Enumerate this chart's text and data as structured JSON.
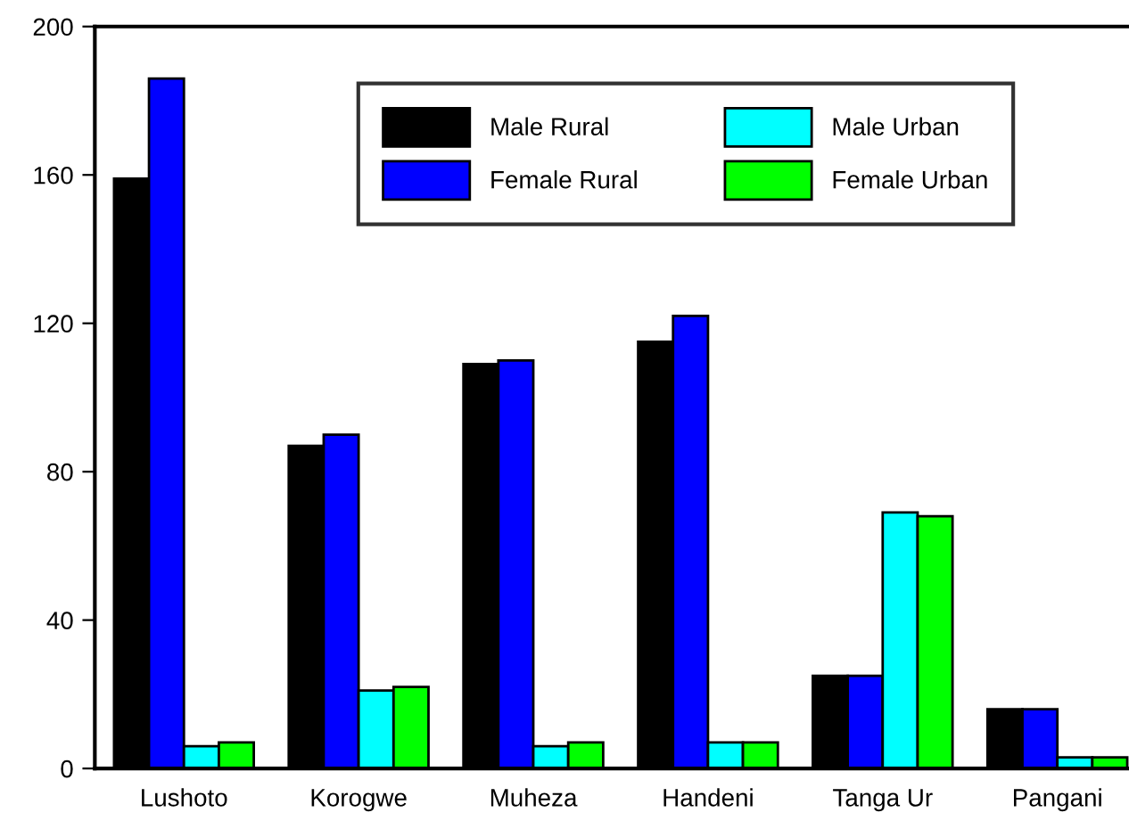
{
  "chart_data": {
    "type": "bar",
    "categories": [
      "Lushoto",
      "Korogwe",
      "Muheza",
      "Handeni",
      "Tanga Ur",
      "Pangani"
    ],
    "series": [
      {
        "name": "Male Rural",
        "color": "#000000",
        "values": [
          159,
          87,
          109,
          115,
          25,
          16
        ]
      },
      {
        "name": "Female Rural",
        "color": "#0000ff",
        "values": [
          186,
          90,
          110,
          122,
          25,
          16
        ]
      },
      {
        "name": "Male Urban",
        "color": "#00ffff",
        "values": [
          6,
          21,
          6,
          7,
          69,
          3
        ]
      },
      {
        "name": "Female Urban",
        "color": "#00ff00",
        "values": [
          7,
          22,
          7,
          7,
          68,
          3
        ]
      }
    ],
    "ylim": [
      0,
      200
    ],
    "yticks": [
      0,
      40,
      80,
      120,
      160,
      200
    ],
    "grid": false,
    "legend": "top right"
  }
}
